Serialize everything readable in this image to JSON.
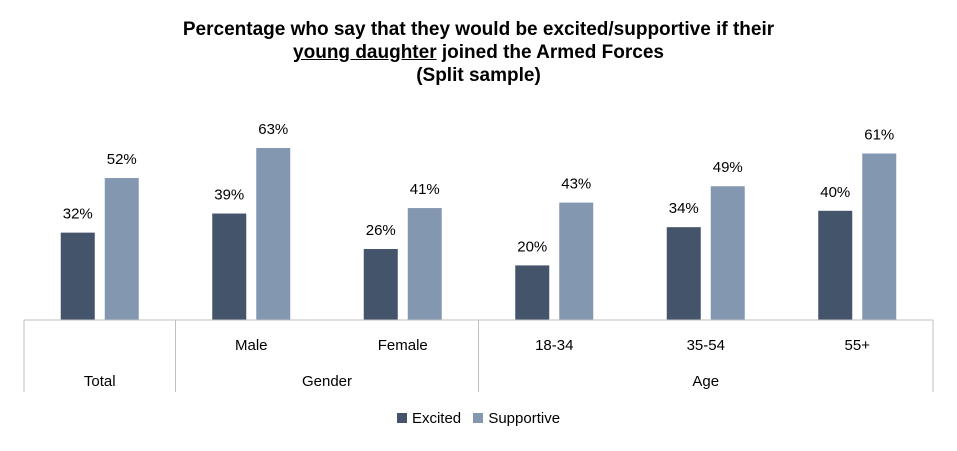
{
  "title": {
    "line1": "Percentage who say that they would be excited/supportive if their",
    "line2_underlined": "young daughter",
    "line2_rest": " joined the Armed Forces",
    "line3": "(Split sample)"
  },
  "colors": {
    "excited": "#44546a",
    "supportive": "#8497b0",
    "axis": "#bfbfbf"
  },
  "chart_data": {
    "type": "bar",
    "categories": [
      "",
      "Male",
      "Female",
      "18-34",
      "35-54",
      "55+"
    ],
    "groups": [
      {
        "label": "Total",
        "span": 1
      },
      {
        "label": "Gender",
        "span": 2
      },
      {
        "label": "Age",
        "span": 3
      }
    ],
    "series": [
      {
        "name": "Excited",
        "values": [
          32,
          39,
          26,
          20,
          34,
          40
        ]
      },
      {
        "name": "Supportive",
        "values": [
          52,
          63,
          41,
          43,
          49,
          61
        ]
      }
    ],
    "value_suffix": "%",
    "ylim": [
      0,
      70
    ],
    "legend_position": "bottom",
    "grid": false
  }
}
